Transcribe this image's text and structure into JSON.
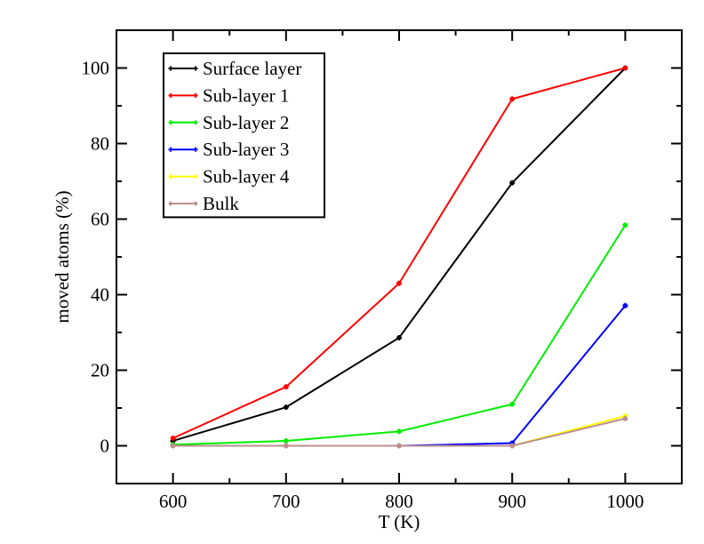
{
  "chart_data": {
    "type": "line",
    "xlabel": "T (K)",
    "ylabel": "moved atoms (%)",
    "xlim": [
      550,
      1050
    ],
    "ylim": [
      -10,
      110
    ],
    "x_ticks": [
      600,
      700,
      800,
      900,
      1000
    ],
    "y_ticks": [
      0,
      20,
      40,
      60,
      80,
      100
    ],
    "x_tick_labels": [
      "600",
      "700",
      "800",
      "900",
      "1000"
    ],
    "y_tick_labels": [
      "0",
      "20",
      "40",
      "60",
      "80",
      "100"
    ],
    "grid": false,
    "legend_position": "top-left",
    "x": [
      600,
      700,
      800,
      900,
      1000
    ],
    "series": [
      {
        "name": "Surface layer",
        "color": "#000000",
        "values": [
          1.3,
          10.2,
          28.6,
          69.6,
          100.0
        ]
      },
      {
        "name": "Sub-layer 1",
        "color": "#ff0000",
        "values": [
          2.0,
          15.6,
          43.0,
          91.8,
          100.0
        ]
      },
      {
        "name": "Sub-layer 2",
        "color": "#00ee00",
        "values": [
          0.3,
          1.3,
          3.8,
          11.0,
          58.4
        ]
      },
      {
        "name": "Sub-layer 3",
        "color": "#0000ff",
        "values": [
          0.0,
          0.0,
          0.0,
          0.7,
          37.1
        ]
      },
      {
        "name": "Sub-layer 4",
        "color": "#ffff00",
        "values": [
          0.0,
          0.0,
          0.0,
          0.0,
          7.9
        ]
      },
      {
        "name": "Bulk",
        "color": "#bc8f8f",
        "values": [
          0.0,
          0.0,
          0.0,
          0.0,
          7.2
        ]
      }
    ]
  }
}
